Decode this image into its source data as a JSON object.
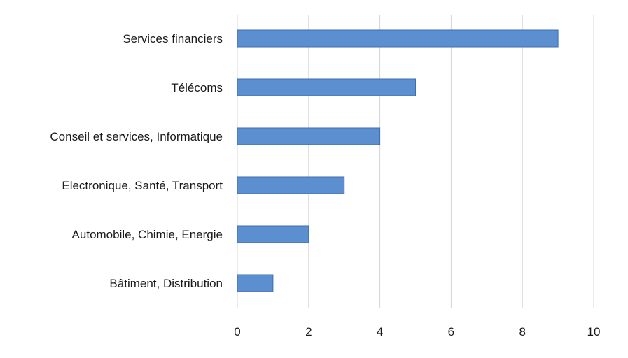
{
  "chart_data": {
    "type": "bar",
    "orientation": "horizontal",
    "categories": [
      "Services financiers",
      "Télécoms",
      "Conseil et services, Informatique",
      "Electronique, Santé, Transport",
      "Automobile, Chimie, Energie",
      "Bâtiment, Distribution"
    ],
    "values": [
      9,
      5,
      4,
      3,
      2,
      1
    ],
    "xlim": [
      0,
      10
    ],
    "xticks": [
      "0",
      "2",
      "4",
      "6",
      "8",
      "10"
    ],
    "grid": "vertical",
    "bar_color": "#5b8fd0",
    "bar_edge_color": "#3c6eaf"
  }
}
